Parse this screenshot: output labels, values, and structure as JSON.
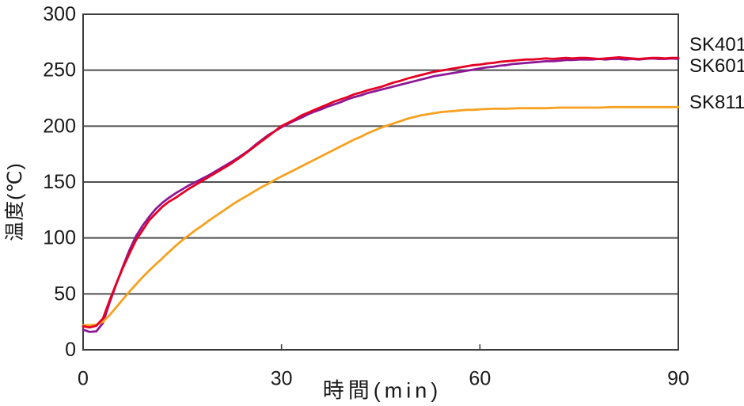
{
  "chart_data": {
    "type": "line",
    "title": "",
    "xlabel": "時間(min)",
    "ylabel": "温度(℃)",
    "xlim": [
      0,
      90
    ],
    "ylim": [
      0,
      300
    ],
    "xticks": [
      0,
      30,
      60,
      90
    ],
    "yticks": [
      0,
      50,
      100,
      150,
      200,
      250,
      300
    ],
    "grid": "horizontal",
    "legend_position": "right-outside",
    "axis_color": "#3d3d3d",
    "grid_color": "#4f4f4f",
    "series": [
      {
        "name": "SK401",
        "color": "#e60023",
        "points": [
          [
            0,
            21
          ],
          [
            1,
            20
          ],
          [
            2,
            21.5
          ],
          [
            3,
            28
          ],
          [
            4,
            44
          ],
          [
            5,
            59
          ],
          [
            6,
            73
          ],
          [
            7,
            86
          ],
          [
            8,
            98
          ],
          [
            9,
            107
          ],
          [
            10,
            116
          ],
          [
            11,
            122
          ],
          [
            12,
            128
          ],
          [
            13,
            132.5
          ],
          [
            14,
            136
          ],
          [
            15,
            140
          ],
          [
            16,
            144
          ],
          [
            17,
            147.5
          ],
          [
            18,
            151
          ],
          [
            19,
            154.5
          ],
          [
            20,
            158
          ],
          [
            21,
            161.5
          ],
          [
            22,
            165
          ],
          [
            23,
            169
          ],
          [
            24,
            173
          ],
          [
            25,
            177.5
          ],
          [
            26,
            182
          ],
          [
            27,
            186.5
          ],
          [
            28,
            191
          ],
          [
            29,
            195.5
          ],
          [
            30,
            200
          ],
          [
            31,
            203
          ],
          [
            32,
            206
          ],
          [
            33,
            209.5
          ],
          [
            34,
            212
          ],
          [
            35,
            214.5
          ],
          [
            36,
            217
          ],
          [
            37,
            219.5
          ],
          [
            38,
            222
          ],
          [
            39,
            224
          ],
          [
            40,
            226
          ],
          [
            41,
            228.5
          ],
          [
            42,
            230
          ],
          [
            43,
            232
          ],
          [
            44,
            233.5
          ],
          [
            45,
            235
          ],
          [
            46,
            237
          ],
          [
            47,
            239
          ],
          [
            48,
            240.5
          ],
          [
            49,
            242.5
          ],
          [
            50,
            244
          ],
          [
            51,
            245.5
          ],
          [
            52,
            247
          ],
          [
            53,
            248.5
          ],
          [
            54,
            249.5
          ],
          [
            55,
            250.5
          ],
          [
            56,
            251.5
          ],
          [
            57,
            252.5
          ],
          [
            58,
            253.5
          ],
          [
            59,
            254.5
          ],
          [
            60,
            255
          ],
          [
            61,
            256
          ],
          [
            62,
            256.5
          ],
          [
            63,
            257.5
          ],
          [
            64,
            258
          ],
          [
            65,
            258.5
          ],
          [
            66,
            259
          ],
          [
            67,
            259.5
          ],
          [
            68,
            259.5
          ],
          [
            69,
            260
          ],
          [
            70,
            260.5
          ],
          [
            71,
            260
          ],
          [
            72,
            260.5
          ],
          [
            73,
            261
          ],
          [
            74,
            260.5
          ],
          [
            75,
            261
          ],
          [
            76,
            261
          ],
          [
            77,
            260.5
          ],
          [
            78,
            260
          ],
          [
            79,
            260.5
          ],
          [
            80,
            261
          ],
          [
            81,
            261.5
          ],
          [
            82,
            261
          ],
          [
            83,
            260.5
          ],
          [
            84,
            260
          ],
          [
            85,
            260.5
          ],
          [
            86,
            261
          ],
          [
            87,
            261
          ],
          [
            88,
            260.5
          ],
          [
            89,
            261
          ],
          [
            90,
            261
          ]
        ]
      },
      {
        "name": "SK601",
        "color": "#8d1895",
        "points": [
          [
            0,
            18
          ],
          [
            1,
            16
          ],
          [
            2,
            16.5
          ],
          [
            3,
            24
          ],
          [
            4,
            42
          ],
          [
            5,
            58.5
          ],
          [
            6,
            74
          ],
          [
            7,
            89
          ],
          [
            8,
            101.5
          ],
          [
            9,
            111
          ],
          [
            10,
            119
          ],
          [
            11,
            126
          ],
          [
            12,
            131.5
          ],
          [
            13,
            136
          ],
          [
            14,
            140
          ],
          [
            15,
            143.5
          ],
          [
            16,
            147
          ],
          [
            17,
            150
          ],
          [
            18,
            153
          ],
          [
            19,
            156
          ],
          [
            20,
            159.5
          ],
          [
            21,
            163
          ],
          [
            22,
            166.5
          ],
          [
            23,
            170
          ],
          [
            24,
            174
          ],
          [
            25,
            178
          ],
          [
            26,
            183
          ],
          [
            27,
            187.5
          ],
          [
            28,
            192
          ],
          [
            29,
            195.5
          ],
          [
            30,
            199
          ],
          [
            31,
            202
          ],
          [
            32,
            205
          ],
          [
            33,
            207.5
          ],
          [
            34,
            210.5
          ],
          [
            35,
            213
          ],
          [
            36,
            215
          ],
          [
            37,
            217.5
          ],
          [
            38,
            219.5
          ],
          [
            39,
            221.5
          ],
          [
            40,
            224
          ],
          [
            41,
            226
          ],
          [
            42,
            227.5
          ],
          [
            43,
            229.5
          ],
          [
            44,
            231
          ],
          [
            45,
            232.5
          ],
          [
            46,
            234
          ],
          [
            47,
            235.5
          ],
          [
            48,
            237
          ],
          [
            49,
            238.5
          ],
          [
            50,
            240
          ],
          [
            51,
            241.5
          ],
          [
            52,
            243
          ],
          [
            53,
            244.5
          ],
          [
            54,
            245.5
          ],
          [
            55,
            246.5
          ],
          [
            56,
            247.5
          ],
          [
            57,
            248.5
          ],
          [
            58,
            249.5
          ],
          [
            59,
            250.5
          ],
          [
            60,
            251.5
          ],
          [
            61,
            252.5
          ],
          [
            62,
            253
          ],
          [
            63,
            254
          ],
          [
            64,
            254.5
          ],
          [
            65,
            255.5
          ],
          [
            66,
            256
          ],
          [
            67,
            256.5
          ],
          [
            68,
            257
          ],
          [
            69,
            257.5
          ],
          [
            70,
            258
          ],
          [
            71,
            258
          ],
          [
            72,
            258.5
          ],
          [
            73,
            259
          ],
          [
            74,
            259
          ],
          [
            75,
            259.5
          ],
          [
            76,
            259.5
          ],
          [
            77,
            259.5
          ],
          [
            78,
            260
          ],
          [
            79,
            259.5
          ],
          [
            80,
            260
          ],
          [
            81,
            260
          ],
          [
            82,
            259.5
          ],
          [
            83,
            260
          ],
          [
            84,
            259.5
          ],
          [
            85,
            260
          ],
          [
            86,
            260.5
          ],
          [
            87,
            260
          ],
          [
            88,
            260
          ],
          [
            89,
            260.5
          ],
          [
            90,
            260
          ]
        ]
      },
      {
        "name": "SK811",
        "color": "#f6a11f",
        "points": [
          [
            0,
            22
          ],
          [
            1,
            22
          ],
          [
            2,
            22.5
          ],
          [
            3,
            25
          ],
          [
            4,
            31
          ],
          [
            5,
            38
          ],
          [
            6,
            45
          ],
          [
            7,
            52
          ],
          [
            8,
            58.5
          ],
          [
            9,
            65
          ],
          [
            10,
            71
          ],
          [
            11,
            76.5
          ],
          [
            12,
            82
          ],
          [
            13,
            87.5
          ],
          [
            14,
            93
          ],
          [
            15,
            98
          ],
          [
            16,
            102.5
          ],
          [
            17,
            107
          ],
          [
            18,
            111
          ],
          [
            19,
            115.5
          ],
          [
            20,
            119.5
          ],
          [
            21,
            123.5
          ],
          [
            22,
            127.5
          ],
          [
            23,
            131.5
          ],
          [
            24,
            135
          ],
          [
            25,
            138.5
          ],
          [
            26,
            142
          ],
          [
            27,
            145.5
          ],
          [
            28,
            148.5
          ],
          [
            29,
            152
          ],
          [
            30,
            155
          ],
          [
            31,
            158
          ],
          [
            32,
            161
          ],
          [
            33,
            164
          ],
          [
            34,
            167
          ],
          [
            35,
            170
          ],
          [
            36,
            173
          ],
          [
            37,
            176
          ],
          [
            38,
            179
          ],
          [
            39,
            182
          ],
          [
            40,
            185
          ],
          [
            41,
            188
          ],
          [
            42,
            190.5
          ],
          [
            43,
            193.5
          ],
          [
            44,
            196
          ],
          [
            45,
            198.5
          ],
          [
            46,
            200.5
          ],
          [
            47,
            202.5
          ],
          [
            48,
            204.5
          ],
          [
            49,
            206.5
          ],
          [
            50,
            208
          ],
          [
            51,
            209.5
          ],
          [
            52,
            210.5
          ],
          [
            53,
            211.5
          ],
          [
            54,
            212.5
          ],
          [
            55,
            213
          ],
          [
            56,
            213.5
          ],
          [
            57,
            214
          ],
          [
            58,
            214.5
          ],
          [
            59,
            214.5
          ],
          [
            60,
            215
          ],
          [
            62,
            215.5
          ],
          [
            64,
            215.5
          ],
          [
            66,
            216
          ],
          [
            68,
            216
          ],
          [
            70,
            216
          ],
          [
            72,
            216.5
          ],
          [
            74,
            216.5
          ],
          [
            76,
            216.5
          ],
          [
            78,
            216.5
          ],
          [
            80,
            217
          ],
          [
            82,
            217
          ],
          [
            84,
            217
          ],
          [
            86,
            217
          ],
          [
            88,
            217
          ],
          [
            90,
            217
          ]
        ]
      }
    ]
  },
  "legend": {
    "sk401": "SK401",
    "sk601": "SK601",
    "sk811": "SK811"
  },
  "style": {
    "text_color": "#1a1a1a",
    "background": "#ffffff",
    "tick_font_px": 25,
    "line_width": 2.8
  }
}
